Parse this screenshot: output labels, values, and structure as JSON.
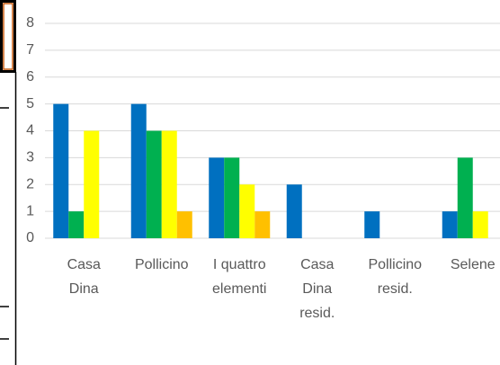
{
  "chart_data": {
    "type": "bar",
    "categories": [
      "Casa Dina",
      "Pollicino",
      "I quattro elementi",
      "Casa Dina resid.",
      "Pollicino resid.",
      "Selene"
    ],
    "series": [
      {
        "color": "#0070c0",
        "values": [
          5,
          5,
          3,
          2,
          1,
          1
        ]
      },
      {
        "color": "#00b050",
        "values": [
          1,
          4,
          3,
          0,
          0,
          3
        ]
      },
      {
        "color": "#ffff00",
        "values": [
          4,
          4,
          2,
          0,
          0,
          1
        ]
      },
      {
        "color": "#ffc000",
        "values": [
          0,
          1,
          1,
          0,
          0,
          0
        ]
      }
    ],
    "ylim": [
      0,
      8
    ],
    "yticks": [
      0,
      1,
      2,
      3,
      4,
      5,
      6,
      7,
      8
    ],
    "grid": true
  }
}
